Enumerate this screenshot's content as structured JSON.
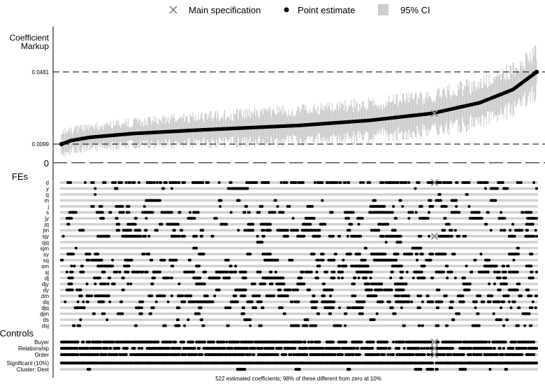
{
  "chart_data": {
    "type": "scatter",
    "subtype": "specification-curve",
    "n_specs": 522,
    "legend": {
      "placement": "top-center",
      "items": [
        {
          "key": "main",
          "label": "Main specification",
          "marker": "x",
          "color": "#888888"
        },
        {
          "key": "point",
          "label": "Point estimate",
          "marker": "dot",
          "color": "#000000"
        },
        {
          "key": "ci",
          "label": "95% CI",
          "marker": "square",
          "color": "#cccccc"
        }
      ]
    },
    "coef_panel": {
      "ylabel_line1": "Coefficient",
      "ylabel_line2": "Markup",
      "ticks": [
        {
          "value": 0.0481,
          "label": "0.0481",
          "line": "dashed"
        },
        {
          "value": 0.0099,
          "label": "0.0099",
          "line": "dashed"
        },
        {
          "value": 0,
          "label": "0",
          "line": "longdash"
        }
      ],
      "ylim": [
        -0.0012,
        0.064
      ],
      "estimate_curve": [
        {
          "pct": 0.0,
          "value": 0.0099
        },
        {
          "pct": 0.02,
          "value": 0.0118
        },
        {
          "pct": 0.06,
          "value": 0.0135
        },
        {
          "pct": 0.15,
          "value": 0.0155
        },
        {
          "pct": 0.3,
          "value": 0.0175
        },
        {
          "pct": 0.5,
          "value": 0.0198
        },
        {
          "pct": 0.65,
          "value": 0.0225
        },
        {
          "pct": 0.78,
          "value": 0.0262
        },
        {
          "pct": 0.88,
          "value": 0.0318
        },
        {
          "pct": 0.95,
          "value": 0.0388
        },
        {
          "pct": 1.0,
          "value": 0.0481
        }
      ],
      "ci_halfwidth": {
        "start": 0.0052,
        "end": 0.0104
      },
      "main_spec_pct": 0.7855,
      "main_spec_value": 0.0262
    },
    "fe_panel": {
      "label": "FEs",
      "rows": [
        "d",
        "y",
        "q",
        "m",
        "j",
        "s",
        "jy",
        "jq",
        "jm",
        "sjy",
        "sjq",
        "sjm",
        "sy",
        "sq",
        "sm",
        "sj",
        "dj",
        "djy",
        "dy",
        "dm",
        "dq",
        "djq",
        "djm",
        "ds",
        "dsj"
      ],
      "main_spec_rows": [
        "d",
        "sjy"
      ],
      "row_density": [
        0.45,
        0.09,
        0.06,
        0.11,
        0.16,
        0.25,
        0.15,
        0.18,
        0.28,
        0.32,
        0.05,
        0.04,
        0.3,
        0.22,
        0.2,
        0.38,
        0.3,
        0.25,
        0.22,
        0.28,
        0.32,
        0.22,
        0.18,
        0.08,
        0.2
      ]
    },
    "controls_panel": {
      "label": "Controls",
      "rows": [
        "Buyer",
        "Relationship",
        "Order"
      ],
      "main_spec_rows": [
        "Buyer",
        "Relationship",
        "Order"
      ],
      "row_density": [
        0.72,
        0.7,
        0.75
      ]
    },
    "sig_panel": {
      "rows": [
        "Significant (10%)",
        "Cluster: Dest"
      ],
      "row_density": [
        0.98,
        0.03
      ]
    },
    "caption": "522 estimated coefficients; 98% of these different from zero at 10%"
  }
}
